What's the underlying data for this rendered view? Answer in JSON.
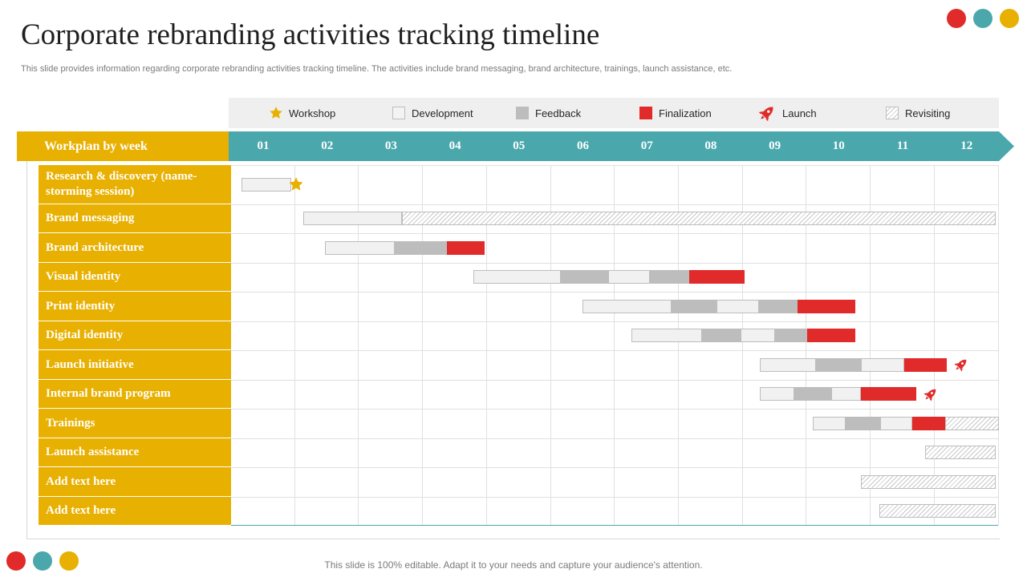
{
  "title": "Corporate rebranding activities tracking timeline",
  "subtitle": "This slide provides information regarding corporate rebranding activities tracking timeline. The activities include brand messaging, brand architecture, trainings, launch assistance, etc.",
  "colors": {
    "accent": "#e8b000",
    "teal": "#4aa8ad",
    "finalization": "#e12a2a",
    "feedback": "#bdbdbd",
    "development": "#f1f1f1",
    "dot_red": "#e12a2a",
    "dot_teal": "#4aa8ad",
    "dot_yellow": "#e8b000"
  },
  "legend": [
    {
      "key": "workshop",
      "label": "Workshop",
      "icon": "star-icon"
    },
    {
      "key": "development",
      "label": "Development"
    },
    {
      "key": "feedback",
      "label": "Feedback"
    },
    {
      "key": "finalization",
      "label": "Finalization"
    },
    {
      "key": "launch",
      "label": "Launch",
      "icon": "rocket-icon"
    },
    {
      "key": "revisiting",
      "label": "Revisiting"
    }
  ],
  "header": {
    "label": "Workplan by week"
  },
  "weeks": [
    "01",
    "02",
    "03",
    "04",
    "05",
    "06",
    "07",
    "08",
    "09",
    "10",
    "11",
    "12"
  ],
  "tasks": [
    {
      "name": "Research & discovery (name-storming session)",
      "segments": [
        [
          "dev",
          0.15,
          0.93
        ]
      ],
      "marker": {
        "type": "star",
        "at": 1.0
      }
    },
    {
      "name": "Brand messaging",
      "segments": [
        [
          "dev",
          1.12,
          2.66
        ],
        [
          "rev",
          2.66,
          11.94
        ]
      ]
    },
    {
      "name": "Brand architecture",
      "segments": [
        [
          "dev",
          1.45,
          2.55
        ],
        [
          "fb",
          2.55,
          3.36
        ],
        [
          "fin",
          3.36,
          3.95
        ]
      ]
    },
    {
      "name": "Visual identity",
      "segments": [
        [
          "dev",
          3.78,
          5.15
        ],
        [
          "fb",
          5.15,
          5.89
        ],
        [
          "dev",
          5.89,
          6.54
        ],
        [
          "fb",
          6.54,
          7.15
        ],
        [
          "fin",
          7.15,
          8.02
        ]
      ]
    },
    {
      "name": "Print identity",
      "segments": [
        [
          "dev",
          5.48,
          6.87
        ],
        [
          "fb",
          6.87,
          7.58
        ],
        [
          "dev",
          7.58,
          8.24
        ],
        [
          "fb",
          8.24,
          8.85
        ],
        [
          "fin",
          8.85,
          9.75
        ]
      ]
    },
    {
      "name": "Digital identity",
      "segments": [
        [
          "dev",
          6.25,
          7.35
        ],
        [
          "fb",
          7.35,
          7.95
        ],
        [
          "dev",
          7.95,
          8.5
        ],
        [
          "fb",
          8.5,
          9.0
        ],
        [
          "fin",
          9.0,
          9.75
        ]
      ]
    },
    {
      "name": "Launch initiative",
      "segments": [
        [
          "dev",
          8.25,
          9.14
        ],
        [
          "fb",
          9.14,
          9.84
        ],
        [
          "dev",
          9.84,
          10.51
        ],
        [
          "fin",
          10.51,
          11.18
        ]
      ],
      "marker": {
        "type": "rocket",
        "at": 11.4
      }
    },
    {
      "name": "Internal brand program",
      "segments": [
        [
          "dev",
          8.25,
          8.8
        ],
        [
          "fb",
          8.8,
          9.37
        ],
        [
          "dev",
          9.37,
          9.84
        ],
        [
          "fin",
          9.84,
          10.7
        ]
      ],
      "marker": {
        "type": "rocket",
        "at": 10.93
      }
    },
    {
      "name": "Trainings",
      "segments": [
        [
          "dev",
          9.09,
          9.6
        ],
        [
          "fb",
          9.6,
          10.14
        ],
        [
          "dev",
          10.14,
          10.64
        ],
        [
          "fin",
          10.64,
          11.15
        ],
        [
          "rev",
          11.15,
          12.0
        ]
      ]
    },
    {
      "name": "Launch assistance",
      "segments": [
        [
          "rev",
          10.84,
          11.94
        ]
      ]
    },
    {
      "name": "Add text here",
      "segments": [
        [
          "rev",
          9.84,
          11.94
        ]
      ]
    },
    {
      "name": "Add text here",
      "segments": [
        [
          "rev",
          10.13,
          11.94
        ]
      ]
    }
  ],
  "footer": "This slide is 100% editable. Adapt it to your needs and capture your audience's attention."
}
